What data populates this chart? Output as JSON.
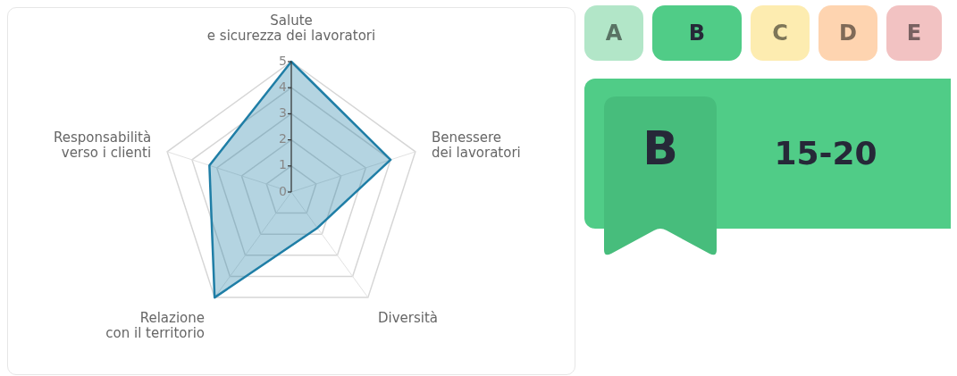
{
  "chart_data": [
    {
      "type": "radar",
      "categories": [
        "Salute\ne sicurezza dei lavoratori",
        "Benessere\ndei lavoratori",
        "Diversità",
        "Relazione\ncon il territorio",
        "Responsabilità\nverso i clienti"
      ],
      "series": [
        {
          "color": "#1f7ea6",
          "values": [
            5,
            4,
            1.7,
            5,
            3.3
          ]
        }
      ],
      "ylim": [
        0,
        5
      ],
      "yticks": [
        0,
        1,
        2,
        3,
        4,
        5
      ],
      "grid": true,
      "legend": false,
      "marker": "none"
    },
    {
      "type": "other",
      "categories": [
        "A",
        "B",
        "C",
        "D",
        "E"
      ],
      "colors": [
        "#b2e6c8",
        "#50cc87",
        "#fdecb0",
        "#fed4b0",
        "#f2c2c2"
      ],
      "annotations": [
        "B",
        "15-20"
      ]
    }
  ]
}
